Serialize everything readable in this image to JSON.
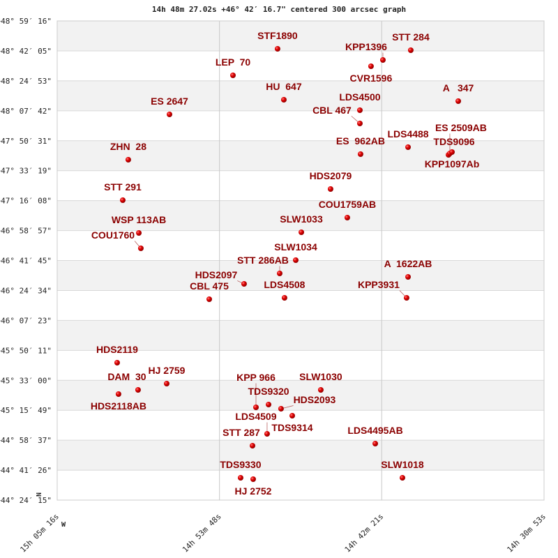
{
  "chart_data": {
    "type": "scatter",
    "title": "14h 48m 27.02s +46° 42′ 16.7\" centered 300 arcsec graph",
    "x_axis": {
      "unit": "RA (hours)",
      "range": [
        15.08778,
        14.51472
      ],
      "reversed": true,
      "ticks": [
        {
          "v": 15.08778,
          "label": "15h 05m 16s"
        },
        {
          "v": 14.89676,
          "label": "14h 53m 48s"
        },
        {
          "v": 14.70583,
          "label": "14h 42m 21s"
        },
        {
          "v": 14.51472,
          "label": "14h 30m 53s"
        }
      ]
    },
    "y_axis": {
      "unit": "Dec (degrees)",
      "range": [
        44.40417,
        48.98778
      ],
      "ticks": [
        "+48° 59′ 16\"",
        "+48° 42′ 05\"",
        "+48° 24′ 53\"",
        "+48° 07′ 42\"",
        "+47° 50′ 31\"",
        "+47° 33′ 19\"",
        "+47° 16′ 08\"",
        "+46° 58′ 57\"",
        "+46° 41′ 45\"",
        "+46° 24′ 34\"",
        "+46° 07′ 23\"",
        "+45° 50′ 11\"",
        "+45° 33′ 00\"",
        "+45° 15′ 49\"",
        "+44° 58′ 37\"",
        "+44° 41′ 26\"",
        "+44° 24′ 15\""
      ]
    },
    "grid": true,
    "direction_labels": {
      "north": "N",
      "west": "W"
    },
    "colors": {
      "point": "#dd0000",
      "label": "#8b0000",
      "band": "#f2f2f2",
      "grid": "#d8d8d8"
    },
    "points": [
      {
        "name": "STF1890",
        "ra": 14.8284,
        "dec": 48.7209
      },
      {
        "name": "STT 284",
        "ra": 14.6716,
        "dec": 48.7076
      },
      {
        "name": "KPP1396",
        "ra": 14.7044,
        "dec": 48.6142
      },
      {
        "name": "CVR1596",
        "ra": 14.7184,
        "dec": 48.5541
      },
      {
        "name": "LEP  70",
        "ra": 14.8809,
        "dec": 48.4674
      },
      {
        "name": "HU  647",
        "ra": 14.821,
        "dec": 48.2339
      },
      {
        "name": "A   347",
        "ra": 14.6157,
        "dec": 48.2205
      },
      {
        "name": "LDS4500",
        "ra": 14.7315,
        "dec": 48.1338
      },
      {
        "name": "CBL 467",
        "ra": 14.7315,
        "dec": 48.007
      },
      {
        "name": "ES 2647",
        "ra": 14.9556,
        "dec": 48.0938
      },
      {
        "name": "LDS4488",
        "ra": 14.6748,
        "dec": 47.7802
      },
      {
        "name": "ES  962AB",
        "ra": 14.7307,
        "dec": 47.7134
      },
      {
        "name": "TDS9096",
        "ra": 14.6272,
        "dec": 47.7068
      },
      {
        "name": "ES 2509AB",
        "ra": 14.6256,
        "dec": 47.7201
      },
      {
        "name": "KPP1097Ab",
        "ra": 14.6231,
        "dec": 47.7335
      },
      {
        "name": "ZHN  28",
        "ra": 15.0041,
        "dec": 47.6601
      },
      {
        "name": "HDS2079",
        "ra": 14.766,
        "dec": 47.3798
      },
      {
        "name": "STT 291",
        "ra": 15.0106,
        "dec": 47.2731
      },
      {
        "name": "COU1759AB",
        "ra": 14.7463,
        "dec": 47.1063
      },
      {
        "name": "SLW1033",
        "ra": 14.8004,
        "dec": 46.9662
      },
      {
        "name": "WSP 113AB",
        "ra": 14.9917,
        "dec": 46.9595
      },
      {
        "name": "COU1760",
        "ra": 14.9893,
        "dec": 46.8127
      },
      {
        "name": "SLW1034",
        "ra": 14.807,
        "dec": 46.6993
      },
      {
        "name": "STT 286AB",
        "ra": 14.8259,
        "dec": 46.5725
      },
      {
        "name": "A  1622AB",
        "ra": 14.6748,
        "dec": 46.5392
      },
      {
        "name": "HDS2097",
        "ra": 14.8678,
        "dec": 46.4725
      },
      {
        "name": "LDS4508",
        "ra": 14.8202,
        "dec": 46.339
      },
      {
        "name": "CBL 475",
        "ra": 14.9088,
        "dec": 46.3257
      },
      {
        "name": "KPP3931",
        "ra": 14.6765,
        "dec": 46.339
      },
      {
        "name": "HDS2119",
        "ra": 15.0172,
        "dec": 45.7185
      },
      {
        "name": "HJ 2759",
        "ra": 14.9589,
        "dec": 45.5184
      },
      {
        "name": "DAM  30",
        "ra": 14.9926,
        "dec": 45.4583
      },
      {
        "name": "HDS2118AB",
        "ra": 15.0156,
        "dec": 45.4183
      },
      {
        "name": "SLW1030",
        "ra": 14.7775,
        "dec": 45.4583
      },
      {
        "name": "TDS9320",
        "ra": 14.839,
        "dec": 45.3182
      },
      {
        "name": "KPP 966",
        "ra": 14.8538,
        "dec": 45.2915
      },
      {
        "name": "HDS2093",
        "ra": 14.8243,
        "dec": 45.2782
      },
      {
        "name": "TDS9314",
        "ra": 14.8111,
        "dec": 45.2114
      },
      {
        "name": "LDS4509",
        "ra": 14.8407,
        "dec": 45.038
      },
      {
        "name": "STT 287",
        "ra": 14.8579,
        "dec": 44.9246
      },
      {
        "name": "LDS4495AB",
        "ra": 14.7134,
        "dec": 44.9446
      },
      {
        "name": "TDS9330",
        "ra": 14.8719,
        "dec": 44.6176
      },
      {
        "name": "HJ 2752",
        "ra": 14.8571,
        "dec": 44.6043
      },
      {
        "name": "SLW1018",
        "ra": 14.6814,
        "dec": 44.6176
      }
    ]
  }
}
